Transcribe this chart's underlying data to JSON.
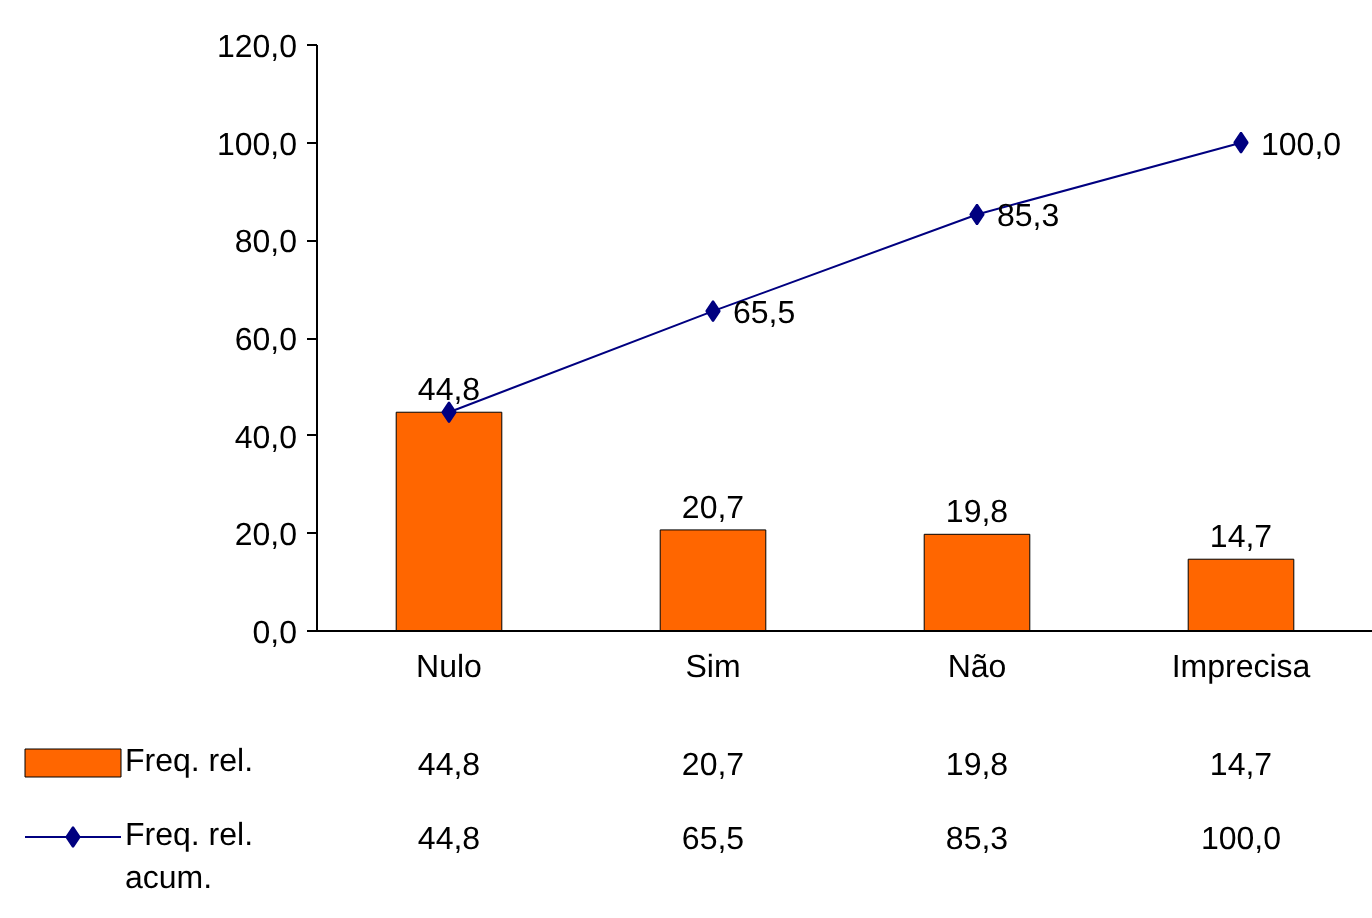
{
  "chart_data": {
    "type": "bar",
    "categories": [
      "Nulo",
      "Sim",
      "Não",
      "Imprecisa"
    ],
    "series": [
      {
        "name": "Freq. rel.",
        "color": "#ff6600",
        "values": [
          44.8,
          20.7,
          19.8,
          14.7
        ],
        "value_labels": [
          "44,8",
          "20,7",
          "19,8",
          "14,7"
        ]
      },
      {
        "name": "Freq. rel. acum.",
        "type": "line",
        "color": "#000080",
        "values": [
          44.8,
          65.5,
          85.3,
          100.0
        ],
        "value_labels": [
          null,
          "65,5",
          "85,3",
          "100,0"
        ]
      }
    ],
    "ylim": [
      0,
      120
    ],
    "yticks": [
      {
        "value": 0,
        "label": "0,0"
      },
      {
        "value": 20,
        "label": "20,0"
      },
      {
        "value": 40,
        "label": "40,0"
      },
      {
        "value": 60,
        "label": "60,0"
      },
      {
        "value": 80,
        "label": "80,0"
      },
      {
        "value": 100,
        "label": "100,0"
      },
      {
        "value": 120,
        "label": "120,0"
      }
    ],
    "grid": false,
    "legend": "bottom",
    "marker": "diamond",
    "line_style": "solid",
    "data_labels": true
  }
}
